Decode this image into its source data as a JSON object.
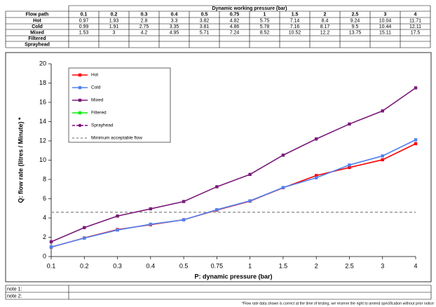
{
  "table": {
    "row_header": "Flow path",
    "column_group": "Dynamic working pressure (bar)"
  },
  "chart_data": {
    "type": "line",
    "categories": [
      "0.1",
      "0.2",
      "0.3",
      "0.4",
      "0.5",
      "0.75",
      "1",
      "1.5",
      "2",
      "2.5",
      "3",
      "4"
    ],
    "series": [
      {
        "name": "Hot",
        "color": "#ff0000",
        "marker": "square",
        "values": [
          0.97,
          1.93,
          2.8,
          3.3,
          3.82,
          4.82,
          5.75,
          7.14,
          8.4,
          9.24,
          10.04,
          11.71
        ]
      },
      {
        "name": "Cold",
        "color": "#4f81f0",
        "marker": "square",
        "values": [
          0.99,
          1.91,
          2.75,
          3.35,
          3.81,
          4.86,
          5.78,
          7.16,
          8.17,
          9.5,
          10.44,
          12.11
        ]
      },
      {
        "name": "Mixed",
        "color": "#7a1a7a",
        "marker": "square",
        "values": [
          1.53,
          3,
          4.2,
          4.95,
          5.71,
          7.24,
          8.52,
          10.52,
          12.2,
          13.75,
          15.11,
          17.5
        ]
      },
      {
        "name": "Filtered",
        "color": "#00ee00",
        "marker": "square",
        "values": [
          null,
          null,
          null,
          null,
          null,
          null,
          null,
          null,
          null,
          null,
          null,
          null
        ]
      },
      {
        "name": "Sprayhead",
        "color": "#800080",
        "marker": "circle",
        "dashed": true,
        "values": [
          null,
          null,
          null,
          null,
          null,
          null,
          null,
          null,
          null,
          null,
          null,
          null
        ]
      }
    ],
    "reference_line": {
      "name": "Minimum acceptable flow",
      "value": 4.6,
      "color": "#999999"
    },
    "ylim": [
      0,
      20
    ],
    "yticks": [
      0,
      2,
      4,
      6,
      8,
      10,
      12,
      14,
      16,
      18,
      20
    ],
    "xlabel": "P: dynamic pressure (bar)",
    "ylabel": "Q: flow rate (litres  / Minute) *"
  },
  "notes": [
    "note 1:",
    "note 2:"
  ],
  "footnote": "*Flow rate data shown is correct at the time of testing, we reserve the right to amend specification without prior notice"
}
